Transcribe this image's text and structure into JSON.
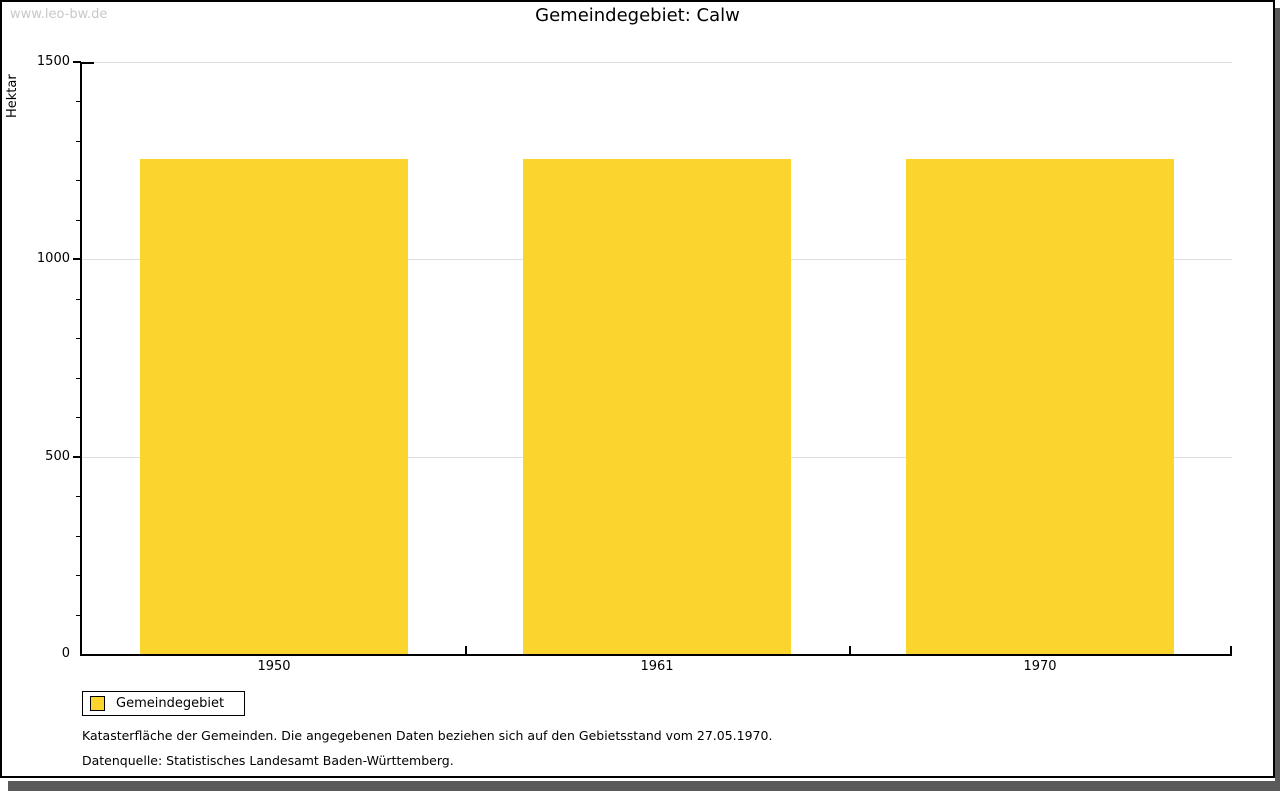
{
  "watermark": "www.leo-bw.de",
  "title": "Gemeindegebiet: Calw",
  "chart_data": {
    "type": "bar",
    "title": "Gemeindegebiet: Calw",
    "categories": [
      "1950",
      "1961",
      "1970"
    ],
    "series": [
      {
        "name": "Gemeindegebiet",
        "values": [
          1254,
          1254,
          1254
        ]
      }
    ],
    "xlabel": "",
    "ylabel": "Hektar",
    "ylim": [
      0,
      1500
    ],
    "y_major_step": 500,
    "y_minor_step": 100,
    "y_tick_labels": [
      "0",
      "500",
      "1000",
      "1500"
    ],
    "grid": true,
    "legend_position": "bottom-left",
    "bar_color": "#fcd42e",
    "grid_color": "#dfdfdf"
  },
  "legend": {
    "label": "Gemeindegebiet",
    "swatch_color": "#fcd42e"
  },
  "footer": {
    "line1": "Katasterfläche der Gemeinden. Die angegebenen Daten beziehen sich auf den Gebietsstand vom 27.05.1970.",
    "line2": "Datenquelle: Statistisches Landesamt Baden-Württemberg."
  },
  "colors": {
    "bar": "#fcd42e",
    "gridline": "#dfdfdf",
    "watermark": "#c8c8c8",
    "frame_shadow": "#5a5a5a",
    "axis": "#000000"
  }
}
